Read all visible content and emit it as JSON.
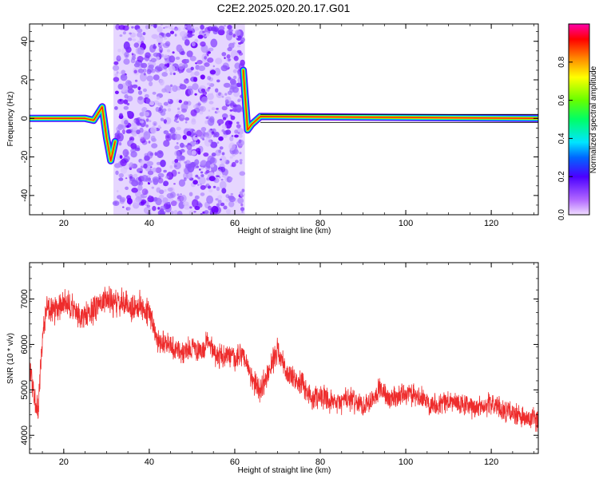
{
  "title": "C2E2.2025.020.20.17.G01",
  "chart_data": [
    {
      "type": "heatmap",
      "xlabel": "Height of straight line (km)",
      "ylabel": "Frequency (Hz)",
      "xlim": [
        12,
        131
      ],
      "ylim": [
        -50,
        49
      ],
      "xticks": [
        20,
        40,
        60,
        80,
        100,
        120
      ],
      "yticks": [
        -40,
        -20,
        0,
        20,
        40
      ],
      "colorbar": {
        "label": "Normalized spectral amplitude",
        "range": [
          0,
          1
        ],
        "ticks": [
          "0.0",
          "0.2",
          "0.4",
          "0.6",
          "0.8"
        ]
      },
      "ridge": {
        "x": [
          12,
          25,
          27,
          29,
          30,
          31,
          32,
          62,
          63,
          64,
          66,
          131
        ],
        "y": [
          0,
          0,
          -1,
          6,
          -10,
          -22,
          -12,
          25,
          -6,
          -3,
          1,
          0
        ]
      },
      "noise_region_km": [
        32,
        62
      ]
    },
    {
      "type": "line",
      "xlabel": "Height of straight line (km)",
      "ylabel": "SNR (10 * v/v)",
      "xlim": [
        12,
        131
      ],
      "ylim": [
        3600,
        7800
      ],
      "xticks": [
        20,
        40,
        60,
        80,
        100,
        120
      ],
      "yticks": [
        4000,
        5000,
        6000,
        7000
      ],
      "color": "#ee2c2c",
      "series": [
        {
          "x": [
            12,
            13,
            14,
            15,
            16,
            18,
            20,
            22,
            24,
            26,
            28,
            30,
            32,
            34,
            36,
            38,
            40,
            42,
            44,
            46,
            48,
            50,
            52,
            54,
            56,
            58,
            60,
            62,
            64,
            66,
            68,
            70,
            72,
            74,
            76,
            78,
            80,
            82,
            84,
            86,
            88,
            90,
            92,
            94,
            96,
            98,
            100,
            102,
            104,
            106,
            108,
            110,
            112,
            114,
            116,
            118,
            120,
            122,
            124,
            126,
            128,
            130,
            131
          ],
          "y": [
            5600,
            4900,
            4500,
            6200,
            6800,
            6700,
            6900,
            6800,
            6600,
            6650,
            6900,
            7000,
            6900,
            6900,
            6800,
            6850,
            6700,
            6100,
            6050,
            5900,
            5800,
            5950,
            5800,
            6100,
            5700,
            5800,
            5650,
            5800,
            5200,
            5000,
            5400,
            5900,
            5400,
            5200,
            5100,
            4800,
            4900,
            4700,
            4700,
            4800,
            4750,
            4650,
            4800,
            5050,
            4800,
            4850,
            4950,
            4850,
            4800,
            4700,
            4700,
            4750,
            4700,
            4650,
            4600,
            4650,
            4700,
            4600,
            4500,
            4450,
            4350,
            4350,
            4300
          ]
        }
      ]
    }
  ]
}
